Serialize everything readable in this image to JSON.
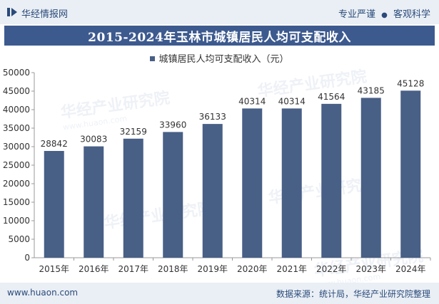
{
  "header": {
    "brand": "华经情报网",
    "slogan_left": "专业严谨",
    "slogan_sep": "●",
    "slogan_right": "客观科学"
  },
  "footer": {
    "website": "www.huaon.com",
    "source": "数据来源：统计局，华经产业研究院整理"
  },
  "watermark": {
    "text": "华经产业研究院",
    "url": "www.huaon.com"
  },
  "colors": {
    "bar": "#485f86",
    "title_bg": "#3d5a8f",
    "band_bg": "#eaeff5",
    "text": "#333333"
  },
  "chart_data": {
    "type": "bar",
    "title": "2015-2024年玉林市城镇居民人均可支配收入",
    "legend": "城镇居民人均可支配收入（元）",
    "categories": [
      "2015年",
      "2016年",
      "2017年",
      "2018年",
      "2019年",
      "2020年",
      "2021年",
      "2022年",
      "2023年",
      "2024年"
    ],
    "values": [
      28842,
      30083,
      32159,
      33960,
      36133,
      40314,
      40314,
      41564,
      43185,
      45128
    ],
    "yticks": [
      0,
      5000,
      10000,
      15000,
      20000,
      25000,
      30000,
      35000,
      40000,
      45000,
      50000
    ],
    "ylim": [
      0,
      50000
    ],
    "xlabel": "",
    "ylabel": ""
  }
}
